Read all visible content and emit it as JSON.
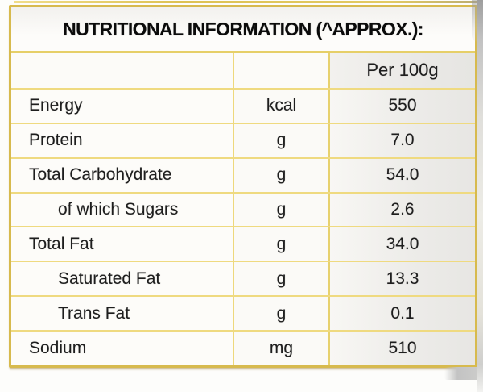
{
  "label": {
    "title": "NUTRITIONAL INFORMATION (^APPROX.):",
    "header": {
      "name": "",
      "unit": "",
      "per_column": "Per 100g"
    },
    "rows": [
      {
        "name": "Energy",
        "unit": "kcal",
        "value": "550",
        "sub": false
      },
      {
        "name": "Protein",
        "unit": "g",
        "value": "7.0",
        "sub": false
      },
      {
        "name": "Total Carbohydrate",
        "unit": "g",
        "value": "54.0",
        "sub": false
      },
      {
        "name": "of which Sugars",
        "unit": "g",
        "value": "2.6",
        "sub": true
      },
      {
        "name": "Total Fat",
        "unit": "g",
        "value": "34.0",
        "sub": false
      },
      {
        "name": "Saturated Fat",
        "unit": "g",
        "value": "13.3",
        "sub": true
      },
      {
        "name": "Trans Fat",
        "unit": "g",
        "value": "0.1",
        "sub": true
      },
      {
        "name": "Sodium",
        "unit": "mg",
        "value": "510",
        "sub": false
      }
    ],
    "colors": {
      "border_gold": "#d7ba4e",
      "grid_gold": "#efda80",
      "text": "#1e1e1e",
      "shading_gray": "#c2c2c2"
    }
  }
}
